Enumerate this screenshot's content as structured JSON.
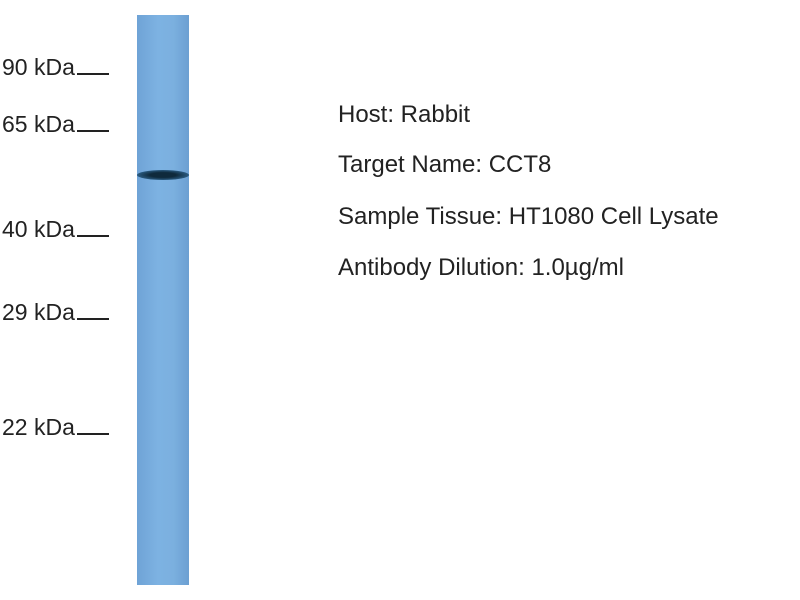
{
  "markers": [
    {
      "label": "90 kDa"
    },
    {
      "label": "65 kDa"
    },
    {
      "label": "40 kDa"
    },
    {
      "label": "29 kDa"
    },
    {
      "label": "22 kDa"
    }
  ],
  "info": {
    "host": "Host: Rabbit",
    "target": "Target Name: CCT8",
    "tissue": "Sample Tissue: HT1080 Cell Lysate",
    "dilution": "Antibody Dilution: 1.0µg/ml"
  },
  "colors": {
    "lane": "#7bb0df",
    "band": "#0f2a3c"
  }
}
